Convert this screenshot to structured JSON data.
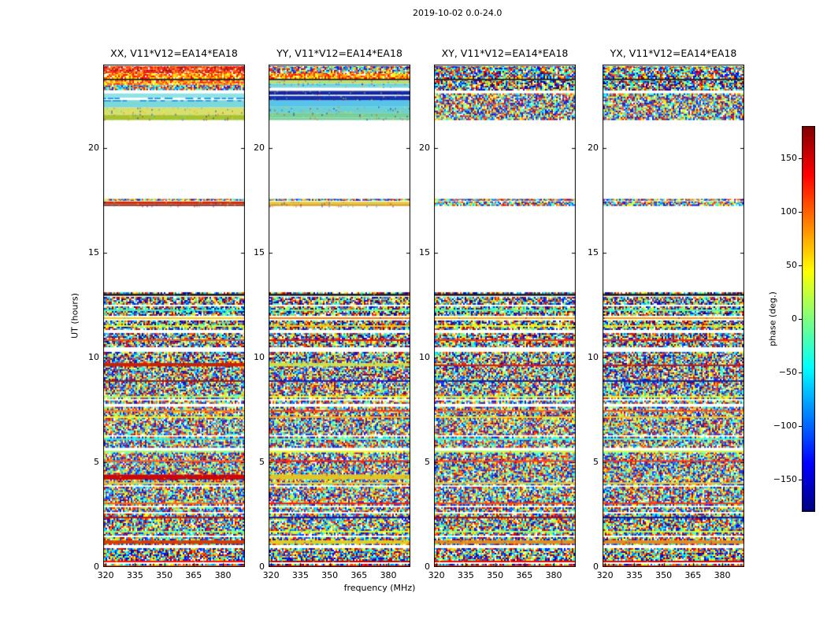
{
  "figure": {
    "background": "#ffffff"
  },
  "chart_data": {
    "type": "heatmap",
    "figure_title": "2019-10-02 0.0-24.0",
    "xlabel": "frequency (MHz)",
    "ylabel": "UT (hours)",
    "xlim": [
      318.75,
      391.25
    ],
    "ylim": [
      0,
      24
    ],
    "xticks": [
      320,
      335,
      350,
      365,
      380
    ],
    "yticks": [
      0,
      5,
      10,
      15,
      20
    ],
    "colormap": "jet",
    "colorbar": {
      "label": "phase (deg.)",
      "ticks": [
        150,
        100,
        50,
        0,
        -50,
        -100,
        -150
      ],
      "vmin": -180,
      "vmax": 180
    },
    "panels": [
      {
        "id": "XX",
        "title": "XX, V11*V12=EA14*EA18",
        "top_stripes": [
          [
            21.35,
            21.62,
            "speckle",
            "#a8c22e"
          ],
          [
            21.62,
            21.95,
            "speckle",
            "#d9e06a"
          ],
          [
            21.95,
            22.3,
            "solid",
            "#7dd8dc"
          ],
          [
            22.3,
            22.42,
            "dashes",
            "#2e9fe0"
          ],
          [
            22.42,
            22.62,
            "solid",
            "#8fe2e6"
          ],
          [
            22.62,
            22.78,
            "white"
          ],
          [
            22.78,
            23.04,
            "noise"
          ],
          [
            23.04,
            23.26,
            "noise_yellow"
          ],
          [
            23.26,
            23.32,
            "black"
          ],
          [
            23.32,
            23.6,
            "noise_yellow"
          ],
          [
            23.6,
            23.92,
            "noise_red"
          ]
        ],
        "mid_stripes": [
          [
            17.25,
            17.33,
            "speckle",
            "#7a0c00"
          ],
          [
            17.33,
            17.46,
            "speckle",
            "#d62a00"
          ],
          [
            17.46,
            17.5,
            "white"
          ],
          [
            17.5,
            17.58,
            "noise"
          ]
        ]
      },
      {
        "id": "YY",
        "title": "YY, V11*V12=EA14*EA18",
        "top_stripes": [
          [
            21.35,
            21.7,
            "speckle",
            "#79cf9a"
          ],
          [
            21.7,
            22.0,
            "speckle",
            "#6acfd6"
          ],
          [
            22.0,
            22.3,
            "solid",
            "#58c4ea"
          ],
          [
            22.3,
            22.5,
            "speckle",
            "#1733ab"
          ],
          [
            22.5,
            22.56,
            "white"
          ],
          [
            22.56,
            22.75,
            "speckle",
            "#12289e"
          ],
          [
            22.75,
            22.9,
            "white"
          ],
          [
            22.9,
            23.1,
            "speckle",
            "#66d2da"
          ],
          [
            23.1,
            23.26,
            "speckle",
            "#bede68"
          ],
          [
            23.26,
            23.32,
            "black"
          ],
          [
            23.32,
            23.6,
            "noise_yellow"
          ],
          [
            23.6,
            23.92,
            "noise"
          ]
        ],
        "mid_stripes": [
          [
            17.25,
            17.33,
            "speckle",
            "#d89010"
          ],
          [
            17.33,
            17.46,
            "speckle",
            "#e6c83a"
          ],
          [
            17.46,
            17.5,
            "white"
          ],
          [
            17.5,
            17.58,
            "noise"
          ]
        ]
      },
      {
        "id": "XY",
        "title": "XY, V11*V12=EA14*EA18",
        "top_stripes": [
          [
            21.35,
            22.62,
            "noise"
          ],
          [
            22.62,
            22.76,
            "white"
          ],
          [
            22.76,
            23.26,
            "noise"
          ],
          [
            23.26,
            23.32,
            "black"
          ],
          [
            23.32,
            23.92,
            "noise"
          ]
        ],
        "mid_stripes": [
          [
            17.25,
            17.46,
            "noise"
          ],
          [
            17.46,
            17.5,
            "white"
          ],
          [
            17.5,
            17.58,
            "noise"
          ]
        ]
      },
      {
        "id": "YX",
        "title": "YX, V11*V12=EA14*EA18",
        "top_stripes": [
          [
            21.35,
            22.62,
            "noise"
          ],
          [
            22.62,
            22.76,
            "white"
          ],
          [
            22.76,
            23.26,
            "noise"
          ],
          [
            23.26,
            23.32,
            "black"
          ],
          [
            23.32,
            23.92,
            "noise"
          ]
        ],
        "mid_stripes": [
          [
            17.25,
            17.46,
            "noise"
          ],
          [
            17.46,
            17.5,
            "white"
          ],
          [
            17.5,
            17.58,
            "noise"
          ]
        ]
      }
    ],
    "coverage": {
      "main_band": {
        "t0": 0.0,
        "t1": 13.05,
        "style": "noise"
      },
      "mid_band": {
        "t0": 17.25,
        "t1": 17.58
      },
      "top_band": {
        "t0": 21.35,
        "t1": 23.92
      },
      "gaps_in_main": [
        [
          0.92,
          1.08
        ],
        [
          2.58,
          2.66
        ],
        [
          5.52,
          5.62
        ],
        [
          10.3,
          10.52
        ],
        [
          11.18,
          11.3
        ],
        [
          11.9,
          12.0
        ],
        [
          12.42,
          12.5
        ],
        [
          12.72,
          12.78
        ]
      ],
      "feature_rows": [
        {
          "t0": 1.12,
          "t1": 1.28,
          "colors": [
            "#d43a00",
            "#e0cc20",
            "#e08a20",
            "#e08a20"
          ]
        },
        {
          "t0": 3.98,
          "t1": 4.08,
          "colors": [
            "#e0c83c",
            "#e0c83c",
            "#e0c83c",
            "#e0c83c"
          ]
        },
        {
          "t0": 4.18,
          "t1": 4.42,
          "colors": [
            "#cc0000",
            "#e0c520",
            null,
            null
          ]
        },
        {
          "t0": 9.62,
          "t1": 9.78,
          "colors": [
            "#cc2200",
            "#cfe04a",
            null,
            null
          ]
        },
        {
          "t0": 12.95,
          "t1": 13.02,
          "colors": [
            "#111111",
            "#111111",
            "#111111",
            "#111111"
          ]
        }
      ]
    }
  }
}
